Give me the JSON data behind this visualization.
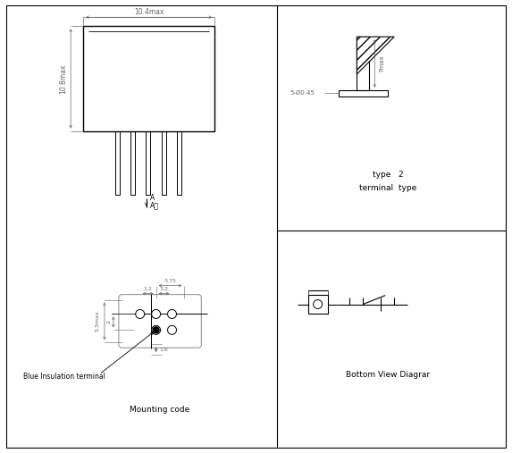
{
  "bg_color": "#ffffff",
  "line_color": "#000000",
  "dim_color": "#666666",
  "gray_line": "#999999",
  "fig_width": 5.73,
  "fig_height": 5.07,
  "type_label": "type   2",
  "terminal_label": "terminal  type",
  "bottom_label": "Bottom View Diagrar",
  "mounting_label": "Mounting code",
  "blue_insulation_label": "Blue Insulation terminal",
  "arrow_label": "A",
  "arrow_label2": "A向",
  "dim_10_4": "10.4max",
  "dim_10_8": "10.8max",
  "dim_7": "7max",
  "dim_5_phi": "5-Ø0.45",
  "dim_3_75": "3.75",
  "dim_1_2": "1.2",
  "dim_3_2": "3.2",
  "dim_5_3": "5.3max",
  "dim_2": "2",
  "dim_1_6": "1.6"
}
